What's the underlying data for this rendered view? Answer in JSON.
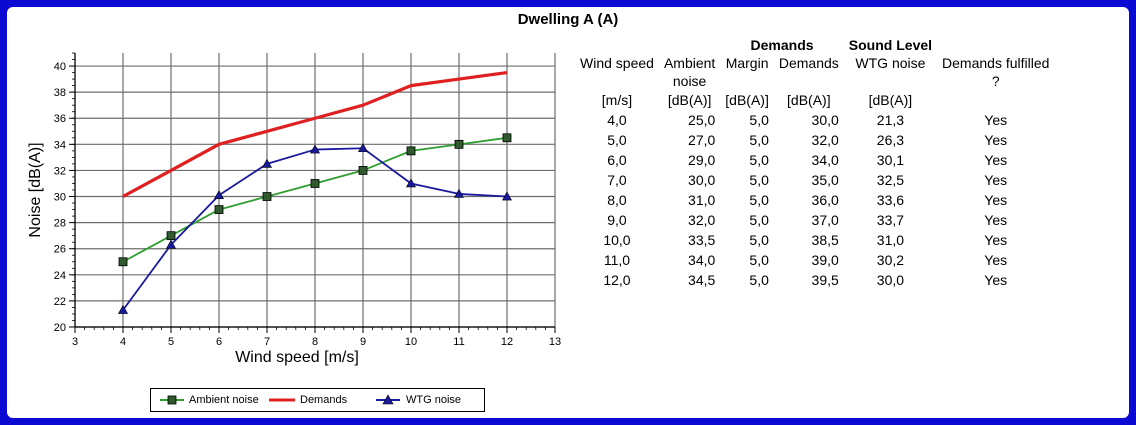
{
  "page_title": "Dwelling A (A)",
  "chart_data": {
    "type": "line",
    "x": [
      4,
      5,
      6,
      7,
      8,
      9,
      10,
      11,
      12
    ],
    "xlabel": "Wind speed [m/s]",
    "ylabel": "Noise [dB(A)]",
    "xlim": [
      3,
      13
    ],
    "ylim": [
      20,
      41
    ],
    "x_ticks": [
      "3",
      "4",
      "5",
      "6",
      "7",
      "8",
      "9",
      "10",
      "11",
      "12",
      "13"
    ],
    "y_ticks": [
      "20",
      "22",
      "24",
      "26",
      "28",
      "30",
      "32",
      "34",
      "36",
      "38",
      "40"
    ],
    "grid": true,
    "legend_position": "bottom",
    "series": [
      {
        "name": "Ambient noise",
        "values": [
          25.0,
          27.0,
          29.0,
          30.0,
          31.0,
          32.0,
          33.5,
          34.0,
          34.5
        ],
        "color": "#2e9e2e",
        "marker": "square"
      },
      {
        "name": "Demands",
        "values": [
          30.0,
          32.0,
          34.0,
          35.0,
          36.0,
          37.0,
          38.5,
          39.0,
          39.5
        ],
        "color": "#e02020",
        "marker": "none"
      },
      {
        "name": "WTG noise",
        "values": [
          21.3,
          26.3,
          30.1,
          32.5,
          33.6,
          33.7,
          31.0,
          30.2,
          30.0
        ],
        "color": "#1a1a9e",
        "marker": "triangle"
      }
    ]
  },
  "table": {
    "group_headers": {
      "demands": "Demands",
      "sound_level": "Sound Level"
    },
    "headers": [
      "Wind speed",
      "Ambient",
      "Margin",
      "Demands",
      "WTG noise",
      "Demands fulfilled"
    ],
    "headers_line2": [
      "",
      "noise",
      "",
      "",
      "",
      "?"
    ],
    "units": [
      "[m/s]",
      "[dB(A)]",
      "[dB(A)]",
      "[dB(A)]",
      "[dB(A)]",
      ""
    ],
    "rows": [
      [
        "4,0",
        "25,0",
        "5,0",
        "30,0",
        "21,3",
        "Yes"
      ],
      [
        "5,0",
        "27,0",
        "5,0",
        "32,0",
        "26,3",
        "Yes"
      ],
      [
        "6,0",
        "29,0",
        "5,0",
        "34,0",
        "30,1",
        "Yes"
      ],
      [
        "7,0",
        "30,0",
        "5,0",
        "35,0",
        "32,5",
        "Yes"
      ],
      [
        "8,0",
        "31,0",
        "5,0",
        "36,0",
        "33,6",
        "Yes"
      ],
      [
        "9,0",
        "32,0",
        "5,0",
        "37,0",
        "33,7",
        "Yes"
      ],
      [
        "10,0",
        "33,5",
        "5,0",
        "38,5",
        "31,0",
        "Yes"
      ],
      [
        "11,0",
        "34,0",
        "5,0",
        "39,0",
        "30,2",
        "Yes"
      ],
      [
        "12,0",
        "34,5",
        "5,0",
        "39,5",
        "30,0",
        "Yes"
      ]
    ]
  }
}
